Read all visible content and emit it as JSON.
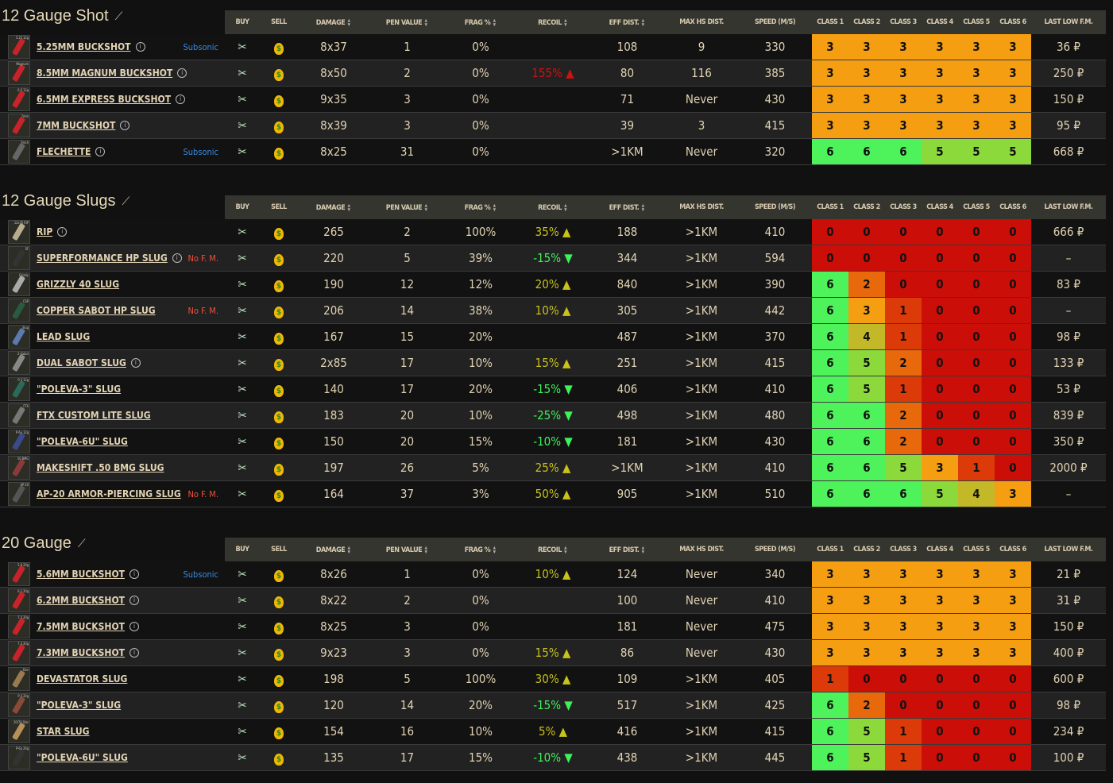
{
  "headers": {
    "buy": "BUY",
    "sell": "SELL",
    "damage": "DAMAGE",
    "pen": "PEN VALUE",
    "frag": "FRAG %",
    "recoil": "RECOIL",
    "eff": "EFF DIST.",
    "maxhs": "MAX HS DIST.",
    "speed": "SPEED (M/S)",
    "classes": [
      "CLASS 1",
      "CLASS 2",
      "CLASS 3",
      "CLASS 4",
      "CLASS 5",
      "CLASS 6"
    ],
    "last": "LAST LOW F.M."
  },
  "class_colors": {
    "6": "#4ef25a",
    "5": "#8cd93c",
    "4": "#c3b828",
    "3": "#f59e12",
    "2": "#e8690c",
    "1": "#dc3a08",
    "0": "#cc0e08"
  },
  "sections": [
    {
      "title": "12 Gauge Shot",
      "rows": [
        {
          "name": "5.25mm Buckshot",
          "thumb": "5.25 12g",
          "color": "#c8232a",
          "info": true,
          "tag": "Subsonic",
          "damage": "8x37",
          "pen": "1",
          "frag": "0%",
          "recoil": "",
          "eff": "108",
          "maxhs": "9",
          "speed": "330",
          "classes": [
            3,
            3,
            3,
            3,
            3,
            3
          ],
          "last": "36 ₽"
        },
        {
          "name": "8.5mm Magnum buckshot",
          "thumb": "Magnum",
          "color": "#c8232a",
          "info": true,
          "tag": "",
          "damage": "8x50",
          "pen": "2",
          "frag": "0%",
          "recoil": "155%",
          "recoil_dir": "bad",
          "eff": "80",
          "maxhs": "116",
          "speed": "385",
          "classes": [
            3,
            3,
            3,
            3,
            3,
            3
          ],
          "last": "250 ₽"
        },
        {
          "name": "6.5mm Express buckshot",
          "thumb": "6.5 12g",
          "color": "#c8232a",
          "info": true,
          "tag": "",
          "damage": "9x35",
          "pen": "3",
          "frag": "0%",
          "recoil": "",
          "eff": "71",
          "maxhs": "Never",
          "speed": "430",
          "classes": [
            3,
            3,
            3,
            3,
            3,
            3
          ],
          "last": "150 ₽"
        },
        {
          "name": "7mm Buckshot",
          "thumb": "7mm",
          "color": "#c8232a",
          "info": true,
          "tag": "",
          "damage": "8x39",
          "pen": "3",
          "frag": "0%",
          "recoil": "",
          "eff": "39",
          "maxhs": "3",
          "speed": "415",
          "classes": [
            3,
            3,
            3,
            3,
            3,
            3
          ],
          "last": "95 ₽"
        },
        {
          "name": "Flechette",
          "thumb": "Flech",
          "color": "#666",
          "info": true,
          "tag": "Subsonic",
          "damage": "8x25",
          "pen": "31",
          "frag": "0%",
          "recoil": "",
          "eff": ">1KM",
          "maxhs": "Never",
          "speed": "320",
          "classes": [
            6,
            6,
            6,
            5,
            5,
            5
          ],
          "last": "668 ₽"
        }
      ]
    },
    {
      "title": "12 Gauge Slugs",
      "rows": [
        {
          "name": "RIP",
          "thumb": "12x70 RIP",
          "color": "#b8ac90",
          "info": true,
          "tag": "",
          "damage": "265",
          "pen": "2",
          "frag": "100%",
          "recoil": "35%",
          "recoil_dir": "up",
          "eff": "188",
          "maxhs": ">1KM",
          "speed": "410",
          "classes": [
            0,
            0,
            0,
            0,
            0,
            0
          ],
          "last": "666 ₽"
        },
        {
          "name": "Superformance HP slug",
          "thumb": "SF",
          "color": "#333",
          "info": true,
          "tag": "No F. M.",
          "damage": "220",
          "pen": "5",
          "frag": "39%",
          "recoil": "-15%",
          "recoil_dir": "down",
          "eff": "344",
          "maxhs": ">1KM",
          "speed": "594",
          "classes": [
            0,
            0,
            0,
            0,
            0,
            0
          ],
          "last": "–"
        },
        {
          "name": "Grizzly 40 Slug",
          "thumb": "Grizzly",
          "color": "#aaa",
          "info": false,
          "tag": "",
          "damage": "190",
          "pen": "12",
          "frag": "12%",
          "recoil": "20%",
          "recoil_dir": "up",
          "eff": "840",
          "maxhs": ">1KM",
          "speed": "390",
          "classes": [
            6,
            2,
            0,
            0,
            0,
            0
          ],
          "last": "83 ₽"
        },
        {
          "name": "Copper Sabot HP slug",
          "thumb": "CSP",
          "color": "#2a5a40",
          "info": false,
          "tag": "No F. M.",
          "damage": "206",
          "pen": "14",
          "frag": "38%",
          "recoil": "10%",
          "recoil_dir": "up",
          "eff": "305",
          "maxhs": ">1KM",
          "speed": "442",
          "classes": [
            6,
            3,
            1,
            0,
            0,
            0
          ],
          "last": "–"
        },
        {
          "name": "Lead slug",
          "thumb": "Slug",
          "color": "#5a7ab0",
          "info": false,
          "tag": "",
          "damage": "167",
          "pen": "15",
          "frag": "20%",
          "recoil": "",
          "eff": "487",
          "maxhs": ">1KM",
          "speed": "370",
          "classes": [
            6,
            4,
            1,
            0,
            0,
            0
          ],
          "last": "98 ₽"
        },
        {
          "name": "Dual Sabot Slug",
          "thumb": "2-Sabot",
          "color": "#888",
          "info": true,
          "tag": "",
          "damage": "2x85",
          "pen": "17",
          "frag": "10%",
          "recoil": "15%",
          "recoil_dir": "up",
          "eff": "251",
          "maxhs": ">1KM",
          "speed": "415",
          "classes": [
            6,
            5,
            2,
            0,
            0,
            0
          ],
          "last": "133 ₽"
        },
        {
          "name": "\"Poleva-3\" slug",
          "thumb": "P-3 12g",
          "color": "#2a6a5a",
          "info": false,
          "tag": "",
          "damage": "140",
          "pen": "17",
          "frag": "20%",
          "recoil": "-15%",
          "recoil_dir": "down",
          "eff": "406",
          "maxhs": ">1KM",
          "speed": "410",
          "classes": [
            6,
            5,
            1,
            0,
            0,
            0
          ],
          "last": "53 ₽"
        },
        {
          "name": "FTX Custom Lite slug",
          "thumb": "FTX",
          "color": "#777",
          "info": false,
          "tag": "",
          "damage": "183",
          "pen": "20",
          "frag": "10%",
          "recoil": "-25%",
          "recoil_dir": "down",
          "eff": "498",
          "maxhs": ">1KM",
          "speed": "480",
          "classes": [
            6,
            6,
            2,
            0,
            0,
            0
          ],
          "last": "839 ₽"
        },
        {
          "name": "\"Poleva-6u\" slug",
          "thumb": "P-6u 12g",
          "color": "#3a4a8a",
          "info": false,
          "tag": "",
          "damage": "150",
          "pen": "20",
          "frag": "15%",
          "recoil": "-10%",
          "recoil_dir": "down",
          "eff": "181",
          "maxhs": ">1KM",
          "speed": "430",
          "classes": [
            6,
            6,
            2,
            0,
            0,
            0
          ],
          "last": "350 ₽"
        },
        {
          "name": "Makeshift .50 BMG Slug",
          "thumb": "50 BMG",
          "color": "#8a3a3a",
          "info": false,
          "tag": "",
          "damage": "197",
          "pen": "26",
          "frag": "5%",
          "recoil": "25%",
          "recoil_dir": "up",
          "eff": ">1KM",
          "maxhs": ">1KM",
          "speed": "410",
          "classes": [
            6,
            6,
            5,
            3,
            1,
            0
          ],
          "last": "2000 ₽"
        },
        {
          "name": "AP-20 Armor-Piercing Slug",
          "thumb": "AP-20",
          "color": "#555",
          "info": false,
          "tag": "No F. M.",
          "damage": "164",
          "pen": "37",
          "frag": "3%",
          "recoil": "50%",
          "recoil_dir": "up",
          "eff": "905",
          "maxhs": ">1KM",
          "speed": "510",
          "classes": [
            6,
            6,
            6,
            5,
            4,
            3
          ],
          "last": "–"
        }
      ]
    },
    {
      "title": "20 Gauge",
      "rows": [
        {
          "name": "5.6mm Buckshot",
          "thumb": "5.6 20g",
          "color": "#c8232a",
          "info": true,
          "tag": "Subsonic",
          "damage": "8x26",
          "pen": "1",
          "frag": "0%",
          "recoil": "10%",
          "recoil_dir": "up",
          "eff": "124",
          "maxhs": "Never",
          "speed": "340",
          "classes": [
            3,
            3,
            3,
            3,
            3,
            3
          ],
          "last": "21 ₽"
        },
        {
          "name": "6.2mm Buckshot",
          "thumb": "6.2 20g",
          "color": "#c8232a",
          "info": true,
          "tag": "",
          "damage": "8x22",
          "pen": "2",
          "frag": "0%",
          "recoil": "",
          "eff": "100",
          "maxhs": "Never",
          "speed": "410",
          "classes": [
            3,
            3,
            3,
            3,
            3,
            3
          ],
          "last": "31 ₽"
        },
        {
          "name": "7.5mm Buckshot",
          "thumb": "7.5 20g",
          "color": "#c8232a",
          "info": true,
          "tag": "",
          "damage": "8x25",
          "pen": "3",
          "frag": "0%",
          "recoil": "",
          "eff": "181",
          "maxhs": "Never",
          "speed": "475",
          "classes": [
            3,
            3,
            3,
            3,
            3,
            3
          ],
          "last": "150 ₽"
        },
        {
          "name": "7.3mm Buckshot",
          "thumb": "7.3 20g",
          "color": "#c8232a",
          "info": true,
          "tag": "",
          "damage": "9x23",
          "pen": "3",
          "frag": "0%",
          "recoil": "15%",
          "recoil_dir": "up",
          "eff": "86",
          "maxhs": "Never",
          "speed": "430",
          "classes": [
            3,
            3,
            3,
            3,
            3,
            3
          ],
          "last": "400 ₽"
        },
        {
          "name": "Devastator slug",
          "thumb": "Dev",
          "color": "#9a7a50",
          "info": false,
          "tag": "",
          "damage": "198",
          "pen": "5",
          "frag": "100%",
          "recoil": "30%",
          "recoil_dir": "up",
          "eff": "109",
          "maxhs": ">1KM",
          "speed": "405",
          "classes": [
            1,
            0,
            0,
            0,
            0,
            0
          ],
          "last": "600 ₽"
        },
        {
          "name": "\"Poleva-3\" slug",
          "thumb": "P-3 20g",
          "color": "#8a4a3a",
          "info": false,
          "tag": "",
          "damage": "120",
          "pen": "14",
          "frag": "20%",
          "recoil": "-15%",
          "recoil_dir": "down",
          "eff": "517",
          "maxhs": ">1KM",
          "speed": "425",
          "classes": [
            6,
            2,
            0,
            0,
            0,
            0
          ],
          "last": "98 ₽"
        },
        {
          "name": "Star slug",
          "thumb": "20/70 Star",
          "color": "#b8905a",
          "info": false,
          "tag": "",
          "damage": "154",
          "pen": "16",
          "frag": "10%",
          "recoil": "5%",
          "recoil_dir": "up",
          "eff": "416",
          "maxhs": ">1KM",
          "speed": "415",
          "classes": [
            6,
            5,
            1,
            0,
            0,
            0
          ],
          "last": "234 ₽"
        },
        {
          "name": "\"Poleva-6u\" slug",
          "thumb": "P-6u 20g",
          "color": "#333",
          "info": false,
          "tag": "",
          "damage": "135",
          "pen": "17",
          "frag": "15%",
          "recoil": "-10%",
          "recoil_dir": "down",
          "eff": "438",
          "maxhs": ">1KM",
          "speed": "445",
          "classes": [
            6,
            5,
            1,
            0,
            0,
            0
          ],
          "last": "100 ₽"
        }
      ]
    }
  ]
}
